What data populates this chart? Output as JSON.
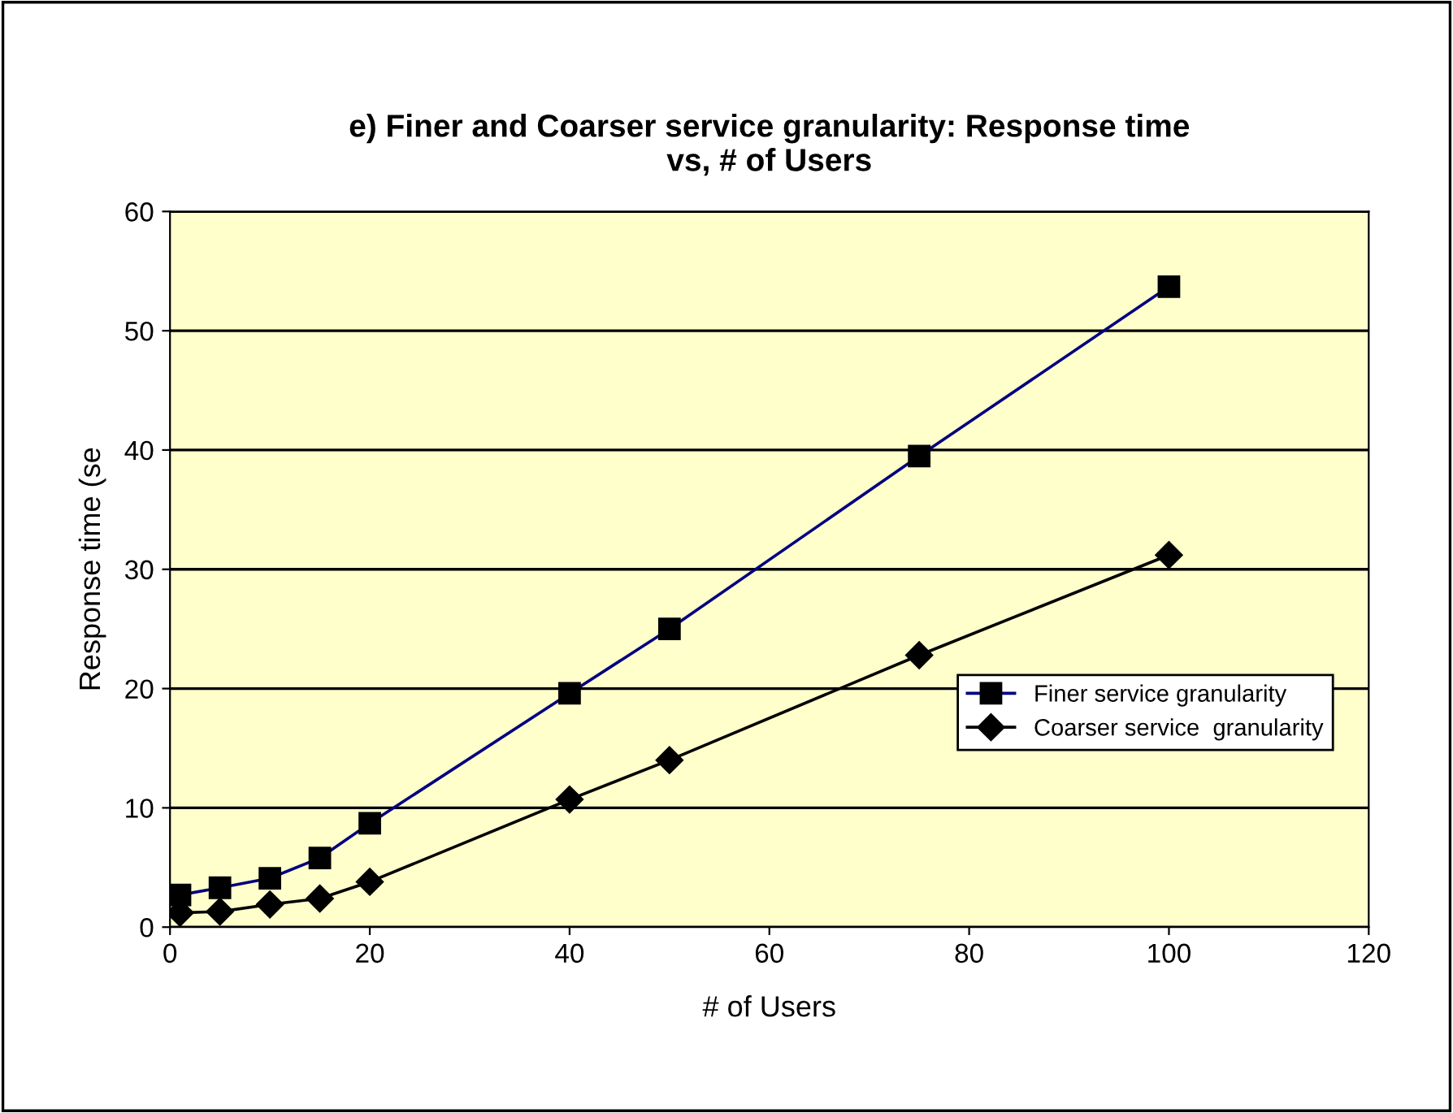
{
  "chart_data": {
    "type": "line",
    "title": "e) Finer and Coarser service granularity: Response time\nvs, # of Users",
    "xlabel": "# of Users",
    "ylabel": "Response time (se",
    "xlim": [
      0,
      120
    ],
    "xticks": [
      0,
      20,
      40,
      60,
      80,
      100,
      120
    ],
    "ylim": [
      0,
      60
    ],
    "yticks": [
      0,
      10,
      20,
      30,
      40,
      50,
      60
    ],
    "grid": "y",
    "legend": "right",
    "series": [
      {
        "name": "Finer service granularity",
        "color": "#000080",
        "marker": "square",
        "x": [
          1,
          5,
          10,
          15,
          20,
          40,
          50,
          75,
          100
        ],
        "values": [
          2.7,
          3.3,
          4.1,
          5.8,
          8.7,
          19.6,
          25.0,
          39.5,
          53.7
        ]
      },
      {
        "name": "Coarser service  granularity",
        "color": "#000000",
        "marker": "diamond",
        "x": [
          1,
          5,
          10,
          15,
          20,
          40,
          50,
          75,
          100
        ],
        "values": [
          1.2,
          1.3,
          1.9,
          2.4,
          3.8,
          10.7,
          14.0,
          22.8,
          31.2
        ]
      }
    ]
  }
}
